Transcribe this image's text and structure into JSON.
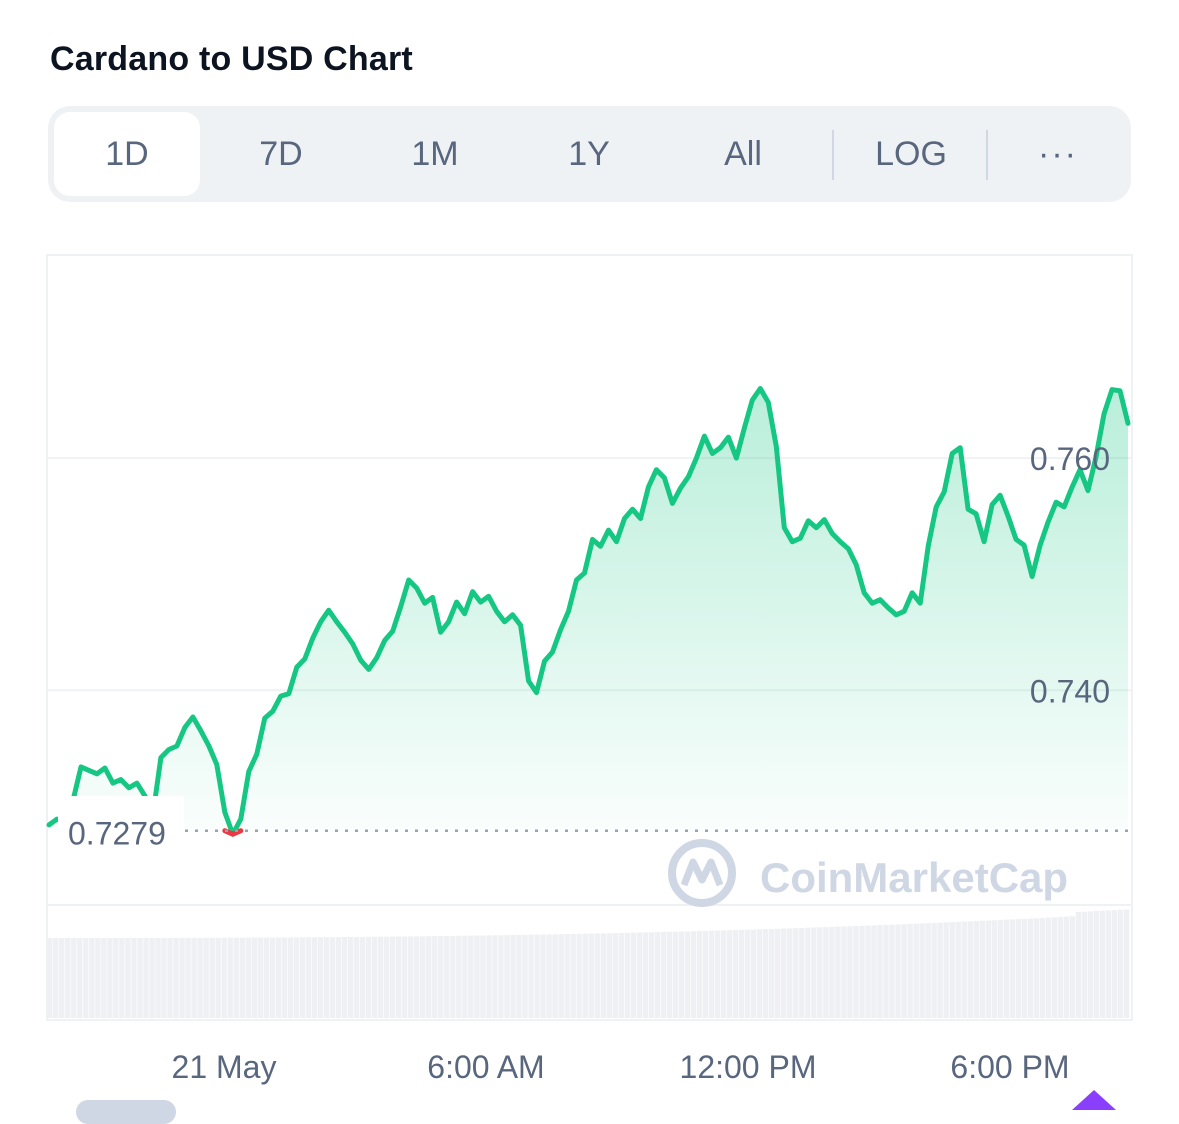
{
  "title": "Cardano to USD Chart",
  "tabs": [
    {
      "label": "1D",
      "active": true
    },
    {
      "label": "7D",
      "active": false
    },
    {
      "label": "1M",
      "active": false
    },
    {
      "label": "1Y",
      "active": false
    },
    {
      "label": "All",
      "active": false
    },
    {
      "label": "LOG",
      "active": false
    },
    {
      "label": "···",
      "active": false
    }
  ],
  "watermark": "CoinMarketCap",
  "colors": {
    "up": "#16c784",
    "down": "#ea3943",
    "grid": "#eff2f5",
    "text": "#58667e",
    "watermark": "#cfd6e4"
  },
  "chart_data": {
    "type": "line",
    "title": "Cardano to USD Chart",
    "xlabel": "",
    "ylabel": "",
    "baseline": 0.7279,
    "baseline_label": "0.7279",
    "yticks": [
      0.74,
      0.76
    ],
    "ytick_labels": [
      "0.740",
      "0.760"
    ],
    "xtick_labels": [
      "21 May",
      "6:00 AM",
      "12:00 PM",
      "6:00 PM"
    ],
    "ylim": [
      0.7215,
      0.7775
    ],
    "grid": true,
    "series": [
      {
        "values": [
          0.7284,
          0.7289,
          0.7287,
          0.7305,
          0.7334,
          0.7331,
          0.7328,
          0.7333,
          0.732,
          0.7323,
          0.7316,
          0.732,
          0.7309,
          0.7293,
          0.7342,
          0.7349,
          0.7352,
          0.7368,
          0.7377,
          0.7365,
          0.7352,
          0.7336,
          0.7295,
          0.7276,
          0.7289,
          0.733,
          0.7345,
          0.7376,
          0.7382,
          0.7395,
          0.7397,
          0.742,
          0.7427,
          0.7445,
          0.7459,
          0.7469,
          0.7459,
          0.745,
          0.744,
          0.7426,
          0.7418,
          0.7428,
          0.7443,
          0.7451,
          0.7472,
          0.7495,
          0.7488,
          0.7475,
          0.748,
          0.745,
          0.7459,
          0.7476,
          0.7466,
          0.7485,
          0.7476,
          0.7481,
          0.7468,
          0.7459,
          0.7465,
          0.7456,
          0.7408,
          0.7398,
          0.7425,
          0.7433,
          0.7452,
          0.7468,
          0.7495,
          0.7501,
          0.753,
          0.7524,
          0.7538,
          0.7528,
          0.7548,
          0.7556,
          0.7548,
          0.7575,
          0.759,
          0.7583,
          0.7561,
          0.7574,
          0.7584,
          0.76,
          0.7619,
          0.7604,
          0.7609,
          0.7618,
          0.76,
          0.7626,
          0.765,
          0.766,
          0.7648,
          0.761,
          0.754,
          0.7528,
          0.7531,
          0.7546,
          0.754,
          0.7547,
          0.7535,
          0.7528,
          0.7522,
          0.7508,
          0.7484,
          0.7475,
          0.7478,
          0.7471,
          0.7465,
          0.7468,
          0.7484,
          0.7475,
          0.7524,
          0.7558,
          0.7571,
          0.7604,
          0.7609,
          0.7556,
          0.7552,
          0.7528,
          0.756,
          0.7568,
          0.755,
          0.753,
          0.7525,
          0.7498,
          0.7525,
          0.7545,
          0.7562,
          0.7558,
          0.7575,
          0.759,
          0.7572,
          0.7601,
          0.7638,
          0.7659,
          0.7658,
          0.763
        ]
      }
    ]
  }
}
